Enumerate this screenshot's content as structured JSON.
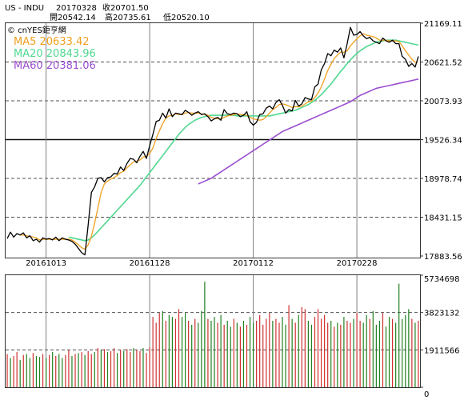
{
  "header": {
    "symbol": "US - INDU",
    "date": "20170328",
    "close_label": "收20701.50",
    "open_label": "開20542.14",
    "high_label": "高20735.61",
    "low_label": "低20520.10",
    "watermark": "© cnYES鉅亨網"
  },
  "colors": {
    "price": "#000000",
    "ma5": "#f0a020",
    "ma20": "#50d890",
    "ma60": "#9a4fd0",
    "vol_up": "#d03030",
    "vol_down": "#208020",
    "grid": "#808080",
    "dashed": "#505050"
  },
  "chart_data": [
    {
      "type": "line",
      "title": "US - INDU",
      "legend": [
        {
          "name": "MA5",
          "value": "20633.42",
          "color": "#f0a020"
        },
        {
          "name": "MA20",
          "value": "20843.96",
          "color": "#50d890"
        },
        {
          "name": "MA60",
          "value": "20381.06",
          "color": "#9a4fd0"
        }
      ],
      "y_ticks": [
        "21169.11",
        "20621.52",
        "20073.93",
        "19526.34",
        "18978.74",
        "18431.15",
        "17883.56"
      ],
      "y_range": [
        17883.56,
        21169.11
      ],
      "x_ticks": [
        {
          "index": 12,
          "label": "20161013"
        },
        {
          "index": 44,
          "label": "20161128"
        },
        {
          "index": 76,
          "label": "20170112"
        },
        {
          "index": 108,
          "label": "20170228"
        }
      ],
      "n_points": 128,
      "series": [
        {
          "name": "Price",
          "values": [
            18130,
            18220,
            18150,
            18200,
            18180,
            18210,
            18140,
            18170,
            18100,
            18120,
            18080,
            18140,
            18120,
            18130,
            18110,
            18150,
            18100,
            18140,
            18120,
            18110,
            18090,
            18050,
            17990,
            17930,
            17900,
            18320,
            18780,
            18860,
            18980,
            18990,
            18930,
            18990,
            19000,
            19050,
            19040,
            19140,
            19090,
            19190,
            19260,
            19250,
            19200,
            19290,
            19360,
            19260,
            19440,
            19600,
            19780,
            19800,
            19900,
            19830,
            19960,
            19850,
            19900,
            19890,
            19880,
            19940,
            19910,
            19870,
            19900,
            19920,
            19880,
            19890,
            19850,
            19790,
            19820,
            19840,
            19800,
            19950,
            19890,
            19880,
            19900,
            19890,
            19850,
            19870,
            19920,
            19780,
            19730,
            19770,
            19880,
            19890,
            19970,
            20000,
            19960,
            20050,
            20090,
            20010,
            19900,
            19950,
            19930,
            20080,
            20000,
            20030,
            20120,
            20100,
            20090,
            20270,
            20310,
            20510,
            20600,
            20740,
            20710,
            20790,
            20760,
            20820,
            20680,
            20880,
            21110,
            21000,
            21010,
            21050,
            20990,
            20950,
            20970,
            20920,
            20900,
            20880,
            20960,
            20920,
            20900,
            20930,
            20880,
            20880,
            20700,
            20660,
            20560,
            20600,
            20550,
            20700
          ]
        },
        {
          "name": "MA5",
          "values": [
            null,
            null,
            null,
            null,
            18180,
            18180,
            18170,
            18160,
            18150,
            18140,
            18110,
            18120,
            18120,
            18120,
            18120,
            18120,
            18120,
            18120,
            18120,
            18120,
            18110,
            18080,
            18040,
            18000,
            17980,
            18040,
            18160,
            18350,
            18560,
            18780,
            18900,
            18940,
            18970,
            18990,
            19020,
            19060,
            19080,
            19130,
            19170,
            19210,
            19220,
            19240,
            19280,
            19290,
            19330,
            19410,
            19540,
            19650,
            19750,
            19830,
            19860,
            19870,
            19890,
            19880,
            19880,
            19900,
            19910,
            19900,
            19900,
            19900,
            19890,
            19880,
            19870,
            19840,
            19830,
            19820,
            19820,
            19840,
            19860,
            19870,
            19880,
            19890,
            19880,
            19880,
            19870,
            19840,
            19820,
            19810,
            19800,
            19810,
            19850,
            19900,
            19950,
            19980,
            20020,
            20030,
            20020,
            20000,
            19980,
            19990,
            19990,
            20000,
            20030,
            20060,
            20070,
            20120,
            20180,
            20270,
            20380,
            20500,
            20590,
            20670,
            20720,
            20760,
            20760,
            20780,
            20850,
            20900,
            20950,
            20990,
            21020,
            21000,
            20990,
            20980,
            20960,
            20930,
            20930,
            20930,
            20920,
            20920,
            20920,
            20910,
            20850,
            20780,
            20720,
            20660,
            20620,
            20620
          ]
        },
        {
          "name": "MA20",
          "values": [
            null,
            null,
            null,
            null,
            null,
            null,
            null,
            null,
            null,
            null,
            null,
            null,
            null,
            null,
            null,
            null,
            null,
            null,
            null,
            18150,
            18140,
            18130,
            18120,
            18110,
            18100,
            18110,
            18140,
            18180,
            18230,
            18280,
            18330,
            18380,
            18430,
            18480,
            18530,
            18580,
            18630,
            18680,
            18730,
            18780,
            18830,
            18880,
            18940,
            19000,
            19060,
            19120,
            19180,
            19240,
            19300,
            19360,
            19420,
            19480,
            19540,
            19600,
            19650,
            19700,
            19740,
            19770,
            19800,
            19820,
            19840,
            19850,
            19860,
            19870,
            19870,
            19870,
            19870,
            19870,
            19870,
            19870,
            19870,
            19860,
            19860,
            19860,
            19860,
            19860,
            19860,
            19860,
            19860,
            19860,
            19860,
            19860,
            19870,
            19880,
            19890,
            19900,
            19910,
            19920,
            19930,
            19940,
            19960,
            19980,
            20000,
            20020,
            20050,
            20080,
            20120,
            20160,
            20210,
            20260,
            20310,
            20370,
            20430,
            20490,
            20540,
            20600,
            20650,
            20700,
            20740,
            20780,
            20810,
            20840,
            20860,
            20880,
            20900,
            20910,
            20920,
            20930,
            20930,
            20930,
            20930,
            20920,
            20910,
            20900,
            20890,
            20880,
            20870,
            20860
          ]
        },
        {
          "name": "MA60",
          "values": [
            null,
            null,
            null,
            null,
            null,
            null,
            null,
            null,
            null,
            null,
            null,
            null,
            null,
            null,
            null,
            null,
            null,
            null,
            null,
            null,
            null,
            null,
            null,
            null,
            null,
            null,
            null,
            null,
            null,
            null,
            null,
            null,
            null,
            null,
            null,
            null,
            null,
            null,
            null,
            null,
            null,
            null,
            null,
            null,
            null,
            null,
            null,
            null,
            null,
            null,
            null,
            null,
            null,
            null,
            null,
            null,
            null,
            null,
            null,
            18900,
            18920,
            18940,
            18960,
            18980,
            19010,
            19040,
            19070,
            19100,
            19130,
            19160,
            19190,
            19220,
            19250,
            19280,
            19310,
            19340,
            19370,
            19400,
            19430,
            19460,
            19490,
            19520,
            19550,
            19580,
            19610,
            19640,
            19660,
            19680,
            19700,
            19720,
            19740,
            19760,
            19780,
            19800,
            19820,
            19840,
            19860,
            19880,
            19900,
            19920,
            19940,
            19960,
            19980,
            20000,
            20020,
            20040,
            20060,
            20090,
            20120,
            20150,
            20170,
            20190,
            20210,
            20230,
            20250,
            20260,
            20270,
            20280,
            20290,
            20300,
            20310,
            20320,
            20330,
            20340,
            20350,
            20360,
            20370,
            20381
          ]
        }
      ]
    },
    {
      "type": "bar",
      "title": "",
      "y_ticks": [
        "5734698",
        "3823132",
        "1911566",
        "0"
      ],
      "y_range": [
        0,
        5734698
      ],
      "series": [
        {
          "name": "",
          "values": [
            1700000,
            1500000,
            1600000,
            1800000,
            1400000,
            1650000,
            1700000,
            1500000,
            1750000,
            1600000,
            1550000,
            1700000,
            1500000,
            1650000,
            1800000,
            1600000,
            1700000,
            1500000,
            1650000,
            1900000,
            1600000,
            1700000,
            1750000,
            1800000,
            1650000,
            1850000,
            1700000,
            1800000,
            2000000,
            1900000,
            1950000,
            1800000,
            1850000,
            2000000,
            1750000,
            1900000,
            1850000,
            1950000,
            1800000,
            2000000,
            1900000,
            1850000,
            2000000,
            1750000,
            2050000,
            3600000,
            3300000,
            3800000,
            3900000,
            3400000,
            3700000,
            3600000,
            3500000,
            4000000,
            3600000,
            3800000,
            3400000,
            3200000,
            3500000,
            3300000,
            3900000,
            5400000,
            3500000,
            3400000,
            3600000,
            3300000,
            3700000,
            3200000,
            3400000,
            3100000,
            3500000,
            3300000,
            3100000,
            3400000,
            3200000,
            3600000,
            3300000,
            3400000,
            3700000,
            3200000,
            3500000,
            3800000,
            3400000,
            3500000,
            3300000,
            3600000,
            3200000,
            4200000,
            3500000,
            3300000,
            3700000,
            4100000,
            4000000,
            3400000,
            3200000,
            3600000,
            4000000,
            3500000,
            3700000,
            3300000,
            3400000,
            3100000,
            3300000,
            3200000,
            3600000,
            3400000,
            3300000,
            3500000,
            3800000,
            3400000,
            3300000,
            3700000,
            3500000,
            3900000,
            3200000,
            3400000,
            3800000,
            3100000,
            3600000,
            3500000,
            3300000,
            5300000,
            3500000,
            3700000,
            4000000,
            3500000,
            3300000,
            3400000
          ]
        },
        {
          "name": "",
          "values": [
            1,
            0,
            1,
            1,
            0,
            1,
            0,
            0,
            1,
            0,
            0,
            1,
            0,
            1,
            0,
            1,
            0,
            0,
            1,
            1,
            0,
            1,
            0,
            1,
            0,
            1,
            1,
            0,
            1,
            0,
            1,
            0,
            1,
            1,
            0,
            1,
            0,
            1,
            1,
            0,
            1,
            1,
            0,
            1,
            1,
            1,
            1,
            1,
            0,
            1,
            0,
            0,
            1,
            1,
            0,
            0,
            1,
            0,
            1,
            0,
            0,
            0,
            1,
            0,
            0,
            1,
            0,
            1,
            0,
            0,
            1,
            0,
            1,
            0,
            1,
            0,
            0,
            1,
            1,
            1,
            1,
            1,
            0,
            1,
            1,
            0,
            0,
            1,
            0,
            1,
            0,
            1,
            1,
            0,
            0,
            1,
            1,
            1,
            1,
            1,
            0,
            1,
            0,
            1,
            0,
            1,
            1,
            0,
            1,
            1,
            0,
            0,
            1,
            0,
            0,
            0,
            1,
            0,
            0,
            1,
            0,
            0,
            0,
            0,
            0,
            1,
            0,
            1
          ]
        }
      ]
    }
  ]
}
